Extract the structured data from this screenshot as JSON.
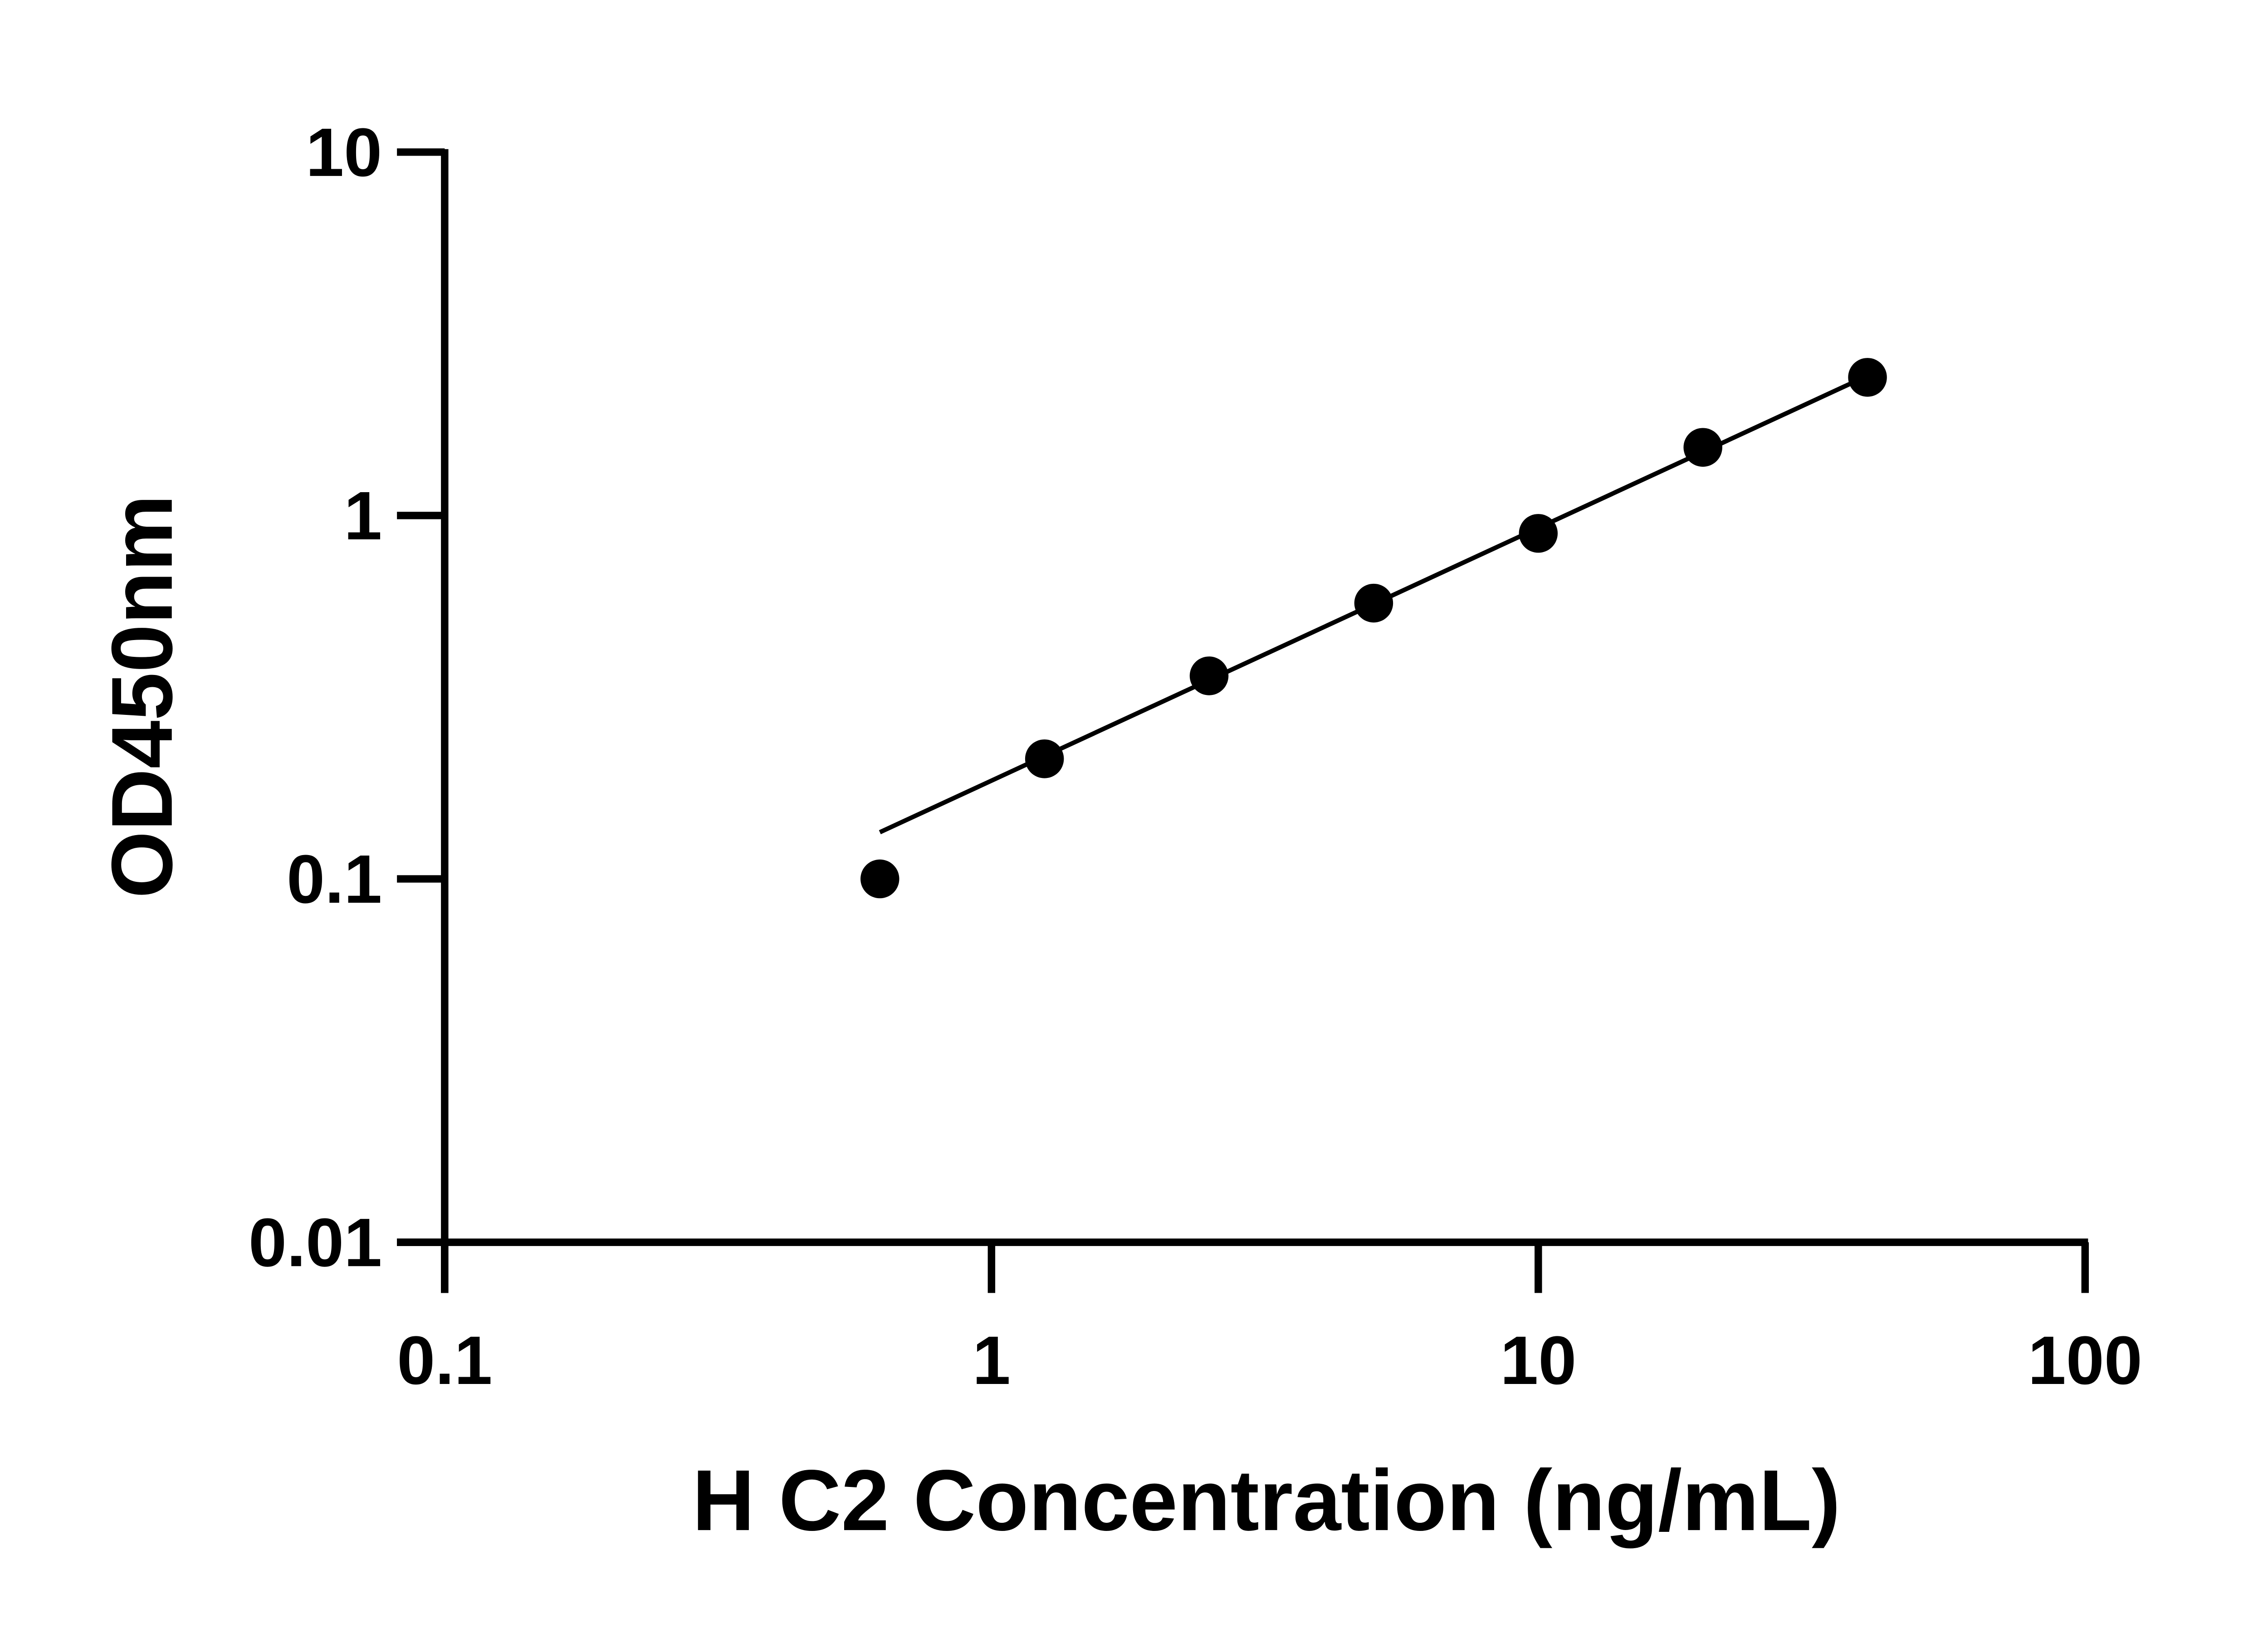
{
  "chart_data": {
    "type": "scatter",
    "title": "",
    "xlabel": "H C2 Concentration (ng/mL)",
    "ylabel": "OD450nm",
    "x_scale": "log",
    "y_scale": "log",
    "xlim": [
      0.1,
      100
    ],
    "ylim": [
      0.01,
      10
    ],
    "x_ticks": [
      "0.1",
      "1",
      "10",
      "100"
    ],
    "y_ticks": [
      "0.01",
      "0.1",
      "1",
      "10"
    ],
    "grid": false,
    "legend": "none",
    "fit_line": true,
    "series": [
      {
        "x": [
          0.625,
          1.25,
          2.5,
          5,
          10,
          20,
          40
        ],
        "y": [
          0.1,
          0.214,
          0.362,
          0.574,
          0.893,
          1.54,
          2.4
        ]
      }
    ],
    "color": "#000000"
  }
}
